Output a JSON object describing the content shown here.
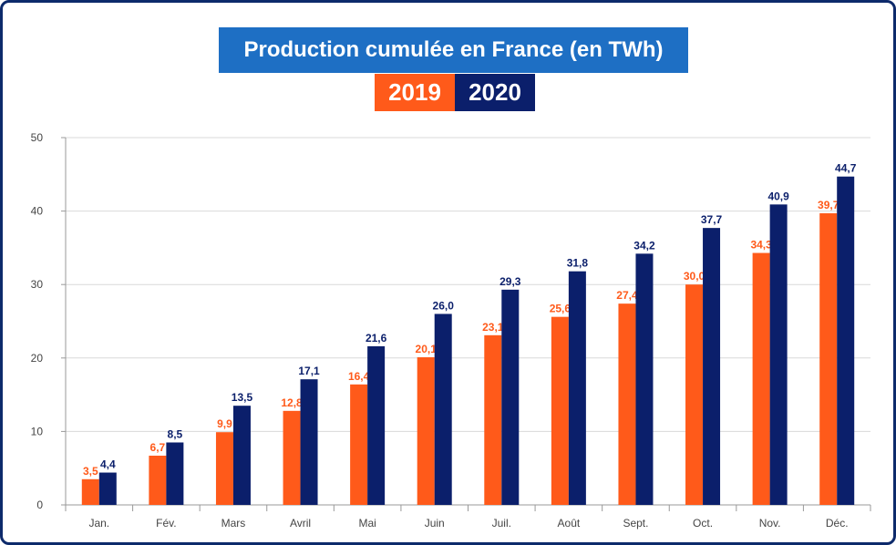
{
  "chart_data": {
    "type": "bar",
    "title": "Production cumulée en France (en TWh)",
    "categories": [
      "Jan.",
      "Fév.",
      "Mars",
      "Avril",
      "Mai",
      "Juin",
      "Juil.",
      "Août",
      "Sept.",
      "Oct.",
      "Nov.",
      "Déc."
    ],
    "series": [
      {
        "name": "2019",
        "color": "#ff5a1a",
        "values": [
          3.5,
          6.7,
          9.9,
          12.8,
          16.4,
          20.1,
          23.1,
          25.6,
          27.4,
          30.0,
          34.3,
          39.7
        ],
        "labels": [
          "3,5",
          "6,7",
          "9,9",
          "12,8",
          "16,4",
          "20,1",
          "23,1",
          "25,6",
          "27,4",
          "30,0",
          "34,3",
          "39,7"
        ]
      },
      {
        "name": "2020",
        "color": "#0b1f6b",
        "values": [
          4.4,
          8.5,
          13.5,
          17.1,
          21.6,
          26.0,
          29.3,
          31.8,
          34.2,
          37.7,
          40.9,
          44.7
        ],
        "labels": [
          "4,4",
          "8,5",
          "13,5",
          "17,1",
          "21,6",
          "26,0",
          "29,3",
          "31,8",
          "34,2",
          "37,7",
          "40,9",
          "44,7"
        ]
      }
    ],
    "ylim": [
      0,
      50
    ],
    "yticks": [
      "0",
      "10",
      "20",
      "30",
      "40",
      "50"
    ],
    "grid": true,
    "legend_position": "top-center"
  }
}
